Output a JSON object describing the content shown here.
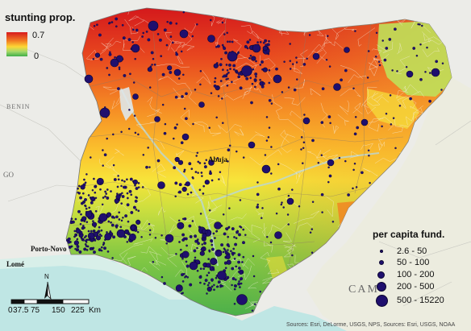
{
  "stunting_legend": {
    "title": "stunting prop.",
    "max_label": "0.7",
    "min_label": "0",
    "colors": [
      "#d7191c",
      "#f27a22",
      "#fdd835",
      "#a6d96a",
      "#3fae49"
    ]
  },
  "fund_legend": {
    "title": "per capita fund.",
    "classes": [
      "2.6 - 50",
      "50 - 100",
      "100 - 200",
      "200 - 500",
      "500 - 15220"
    ],
    "dot_color": "#1f0f6e"
  },
  "scale_bar": {
    "labels": [
      "0",
      "37.5",
      "75",
      "150",
      "225"
    ],
    "unit": "Km",
    "north_label": "N"
  },
  "place_labels": {
    "benin": "BENIN",
    "porto_novo": "Porto-Novo",
    "lome": "Lomé",
    "abuja": "Abuja",
    "cam": "CAM",
    "go": "GO"
  },
  "attribution": "Sources: Esri, DeLorme, USGS, NPS, Sources: Esri, USGS, NOAA"
}
